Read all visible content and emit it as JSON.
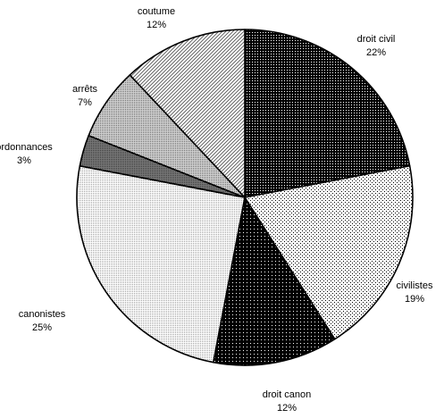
{
  "chart_data": {
    "type": "pie",
    "title": "",
    "slices": [
      {
        "label": "droit civil",
        "value": 22,
        "value_label": "22%",
        "fill": "dark-dots"
      },
      {
        "label": "civilistes",
        "value": 19,
        "value_label": "19%",
        "fill": "light-dots"
      },
      {
        "label": "droit canon",
        "value": 12,
        "value_label": "12%",
        "fill": "very-dark-dots"
      },
      {
        "label": "canonistes",
        "value": 25,
        "value_label": "25%",
        "fill": "fine-light-stipple"
      },
      {
        "label": "ordonnances",
        "value": 3,
        "value_label": "3%",
        "fill": "dark-gray"
      },
      {
        "label": "arrêts",
        "value": 7,
        "value_label": "7%",
        "fill": "medium-gray-dots"
      },
      {
        "label": "coutume",
        "value": 12,
        "value_label": "12%",
        "fill": "diagonal-hatch"
      }
    ],
    "start": "12 o'clock",
    "direction": "clockwise",
    "legend": "none",
    "colors": {
      "stroke": "#000000",
      "background": "#ffffff"
    }
  }
}
